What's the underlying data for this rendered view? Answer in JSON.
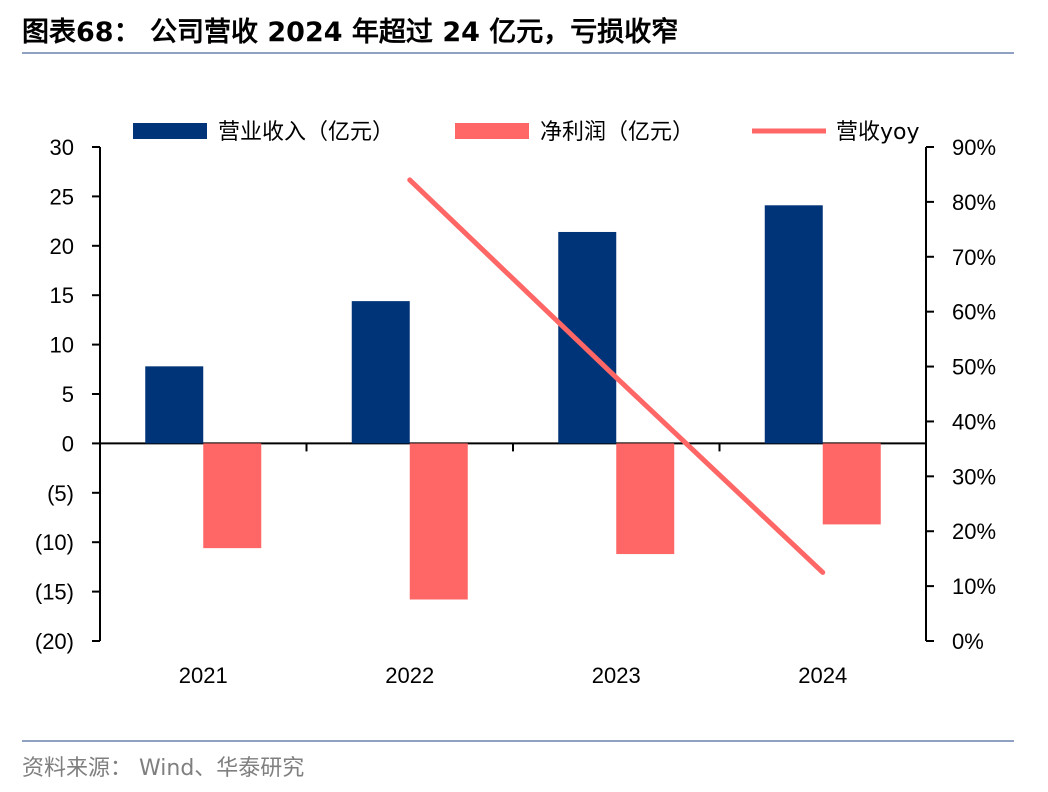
{
  "title": "图表68： 公司营收 2024 年超过 24 亿元，亏损收窄",
  "source": "资料来源： Wind、华泰研究",
  "colors": {
    "revenue": "#003478",
    "profit": "#ff6666",
    "yoy": "#ff6666",
    "rule": "#8ea1c2"
  },
  "chart_data": {
    "type": "bar",
    "categories": [
      "2021",
      "2022",
      "2023",
      "2024"
    ],
    "series": [
      {
        "name": "营业收入（亿元）",
        "type": "bar",
        "axis": "left",
        "values": [
          7.8,
          14.4,
          21.4,
          24.1
        ]
      },
      {
        "name": "净利润（亿元）",
        "type": "bar",
        "axis": "left",
        "values": [
          -10.6,
          -15.8,
          -11.2,
          -8.2
        ]
      },
      {
        "name": "营收yoy",
        "type": "line",
        "axis": "right",
        "values": [
          null,
          0.84,
          0.48,
          0.125
        ]
      }
    ],
    "left_axis": {
      "min": -20,
      "max": 30,
      "step": 5,
      "tick_labels": [
        "(20)",
        "(15)",
        "(10)",
        "(5)",
        "0",
        "5",
        "10",
        "15",
        "20",
        "25",
        "30"
      ]
    },
    "right_axis": {
      "min": 0,
      "max": 0.9,
      "step": 0.1,
      "tick_labels": [
        "0%",
        "10%",
        "20%",
        "30%",
        "40%",
        "50%",
        "60%",
        "70%",
        "80%",
        "90%"
      ]
    },
    "legend_position": "top",
    "grid": false
  }
}
